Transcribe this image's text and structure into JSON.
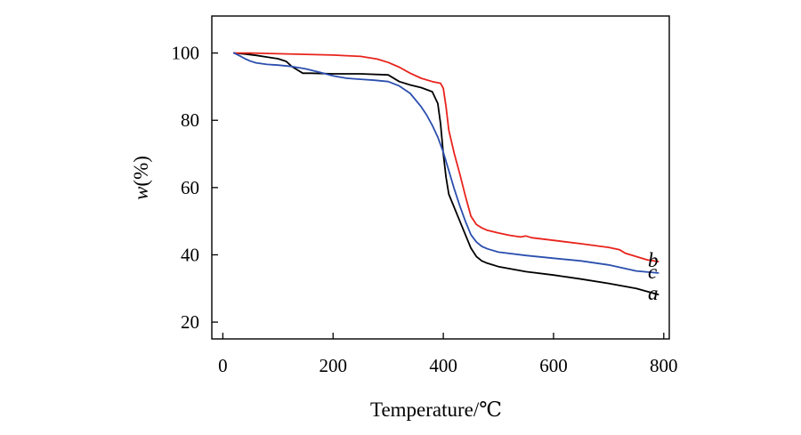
{
  "chart_data": {
    "type": "line",
    "title": "",
    "xlabel": "Temperature/℃",
    "ylabel": {
      "italic": "w",
      "rest": "(%)"
    },
    "xlim": [
      -20,
      810
    ],
    "ylim": [
      15,
      111
    ],
    "xticks": [
      0,
      200,
      400,
      600,
      800
    ],
    "yticks": [
      20,
      40,
      60,
      80,
      100
    ],
    "xtick_labels": [
      "0",
      "200",
      "400",
      "600",
      "800"
    ],
    "ytick_labels": [
      "20",
      "40",
      "60",
      "80",
      "100"
    ],
    "grid": false,
    "series": [
      {
        "name": "a",
        "label": "a",
        "color": "#000000",
        "x": [
          20,
          40,
          60,
          80,
          100,
          115,
          125,
          135,
          145,
          160,
          200,
          250,
          300,
          320,
          340,
          360,
          380,
          390,
          395,
          400,
          405,
          410,
          420,
          430,
          440,
          450,
          460,
          470,
          480,
          500,
          550,
          600,
          650,
          700,
          750,
          790
        ],
        "y": [
          100,
          99.7,
          99.3,
          98.8,
          98.3,
          97.5,
          96,
          95,
          94,
          94,
          93.8,
          93.8,
          93.5,
          91.5,
          90.5,
          89.7,
          88.5,
          85,
          79,
          70,
          63,
          58,
          54,
          50,
          46,
          42,
          39.5,
          38.2,
          37.5,
          36.5,
          35,
          34,
          32.8,
          31.5,
          30,
          28.2
        ]
      },
      {
        "name": "b",
        "label": "b",
        "color": "#e8231c",
        "x": [
          20,
          50,
          100,
          150,
          200,
          250,
          280,
          300,
          320,
          340,
          360,
          380,
          395,
          400,
          405,
          410,
          420,
          430,
          440,
          450,
          460,
          470,
          480,
          500,
          520,
          540,
          550,
          560,
          600,
          650,
          700,
          720,
          730,
          750,
          770,
          790
        ],
        "y": [
          100,
          100,
          99.8,
          99.6,
          99.4,
          99.0,
          98.2,
          97.2,
          95.8,
          94.0,
          92.5,
          91.5,
          91.0,
          89.5,
          84.0,
          77.0,
          70.0,
          64.0,
          57.5,
          51.5,
          49.0,
          48.0,
          47.3,
          46.5,
          45.8,
          45.3,
          45.6,
          45.1,
          44.3,
          43.3,
          42.2,
          41.5,
          40.5,
          39.5,
          38.5,
          38.0
        ]
      },
      {
        "name": "c",
        "label": "c",
        "color": "#2b4fae",
        "x": [
          20,
          30,
          40,
          50,
          60,
          80,
          100,
          125,
          150,
          175,
          200,
          225,
          250,
          275,
          300,
          320,
          340,
          360,
          370,
          380,
          390,
          400,
          410,
          420,
          430,
          440,
          450,
          460,
          470,
          480,
          500,
          550,
          600,
          650,
          700,
          750,
          790
        ],
        "y": [
          100,
          99.2,
          98.3,
          97.6,
          97.1,
          96.6,
          96.4,
          96.0,
          95.3,
          94.3,
          93.2,
          92.5,
          92.2,
          91.9,
          91.5,
          90.2,
          88.0,
          84.0,
          81.5,
          78.5,
          75.0,
          70.5,
          65.0,
          59.5,
          54.5,
          50.0,
          46.0,
          43.8,
          42.5,
          41.8,
          40.8,
          39.8,
          39.0,
          38.2,
          37.0,
          35.2,
          34.6
        ]
      }
    ]
  }
}
